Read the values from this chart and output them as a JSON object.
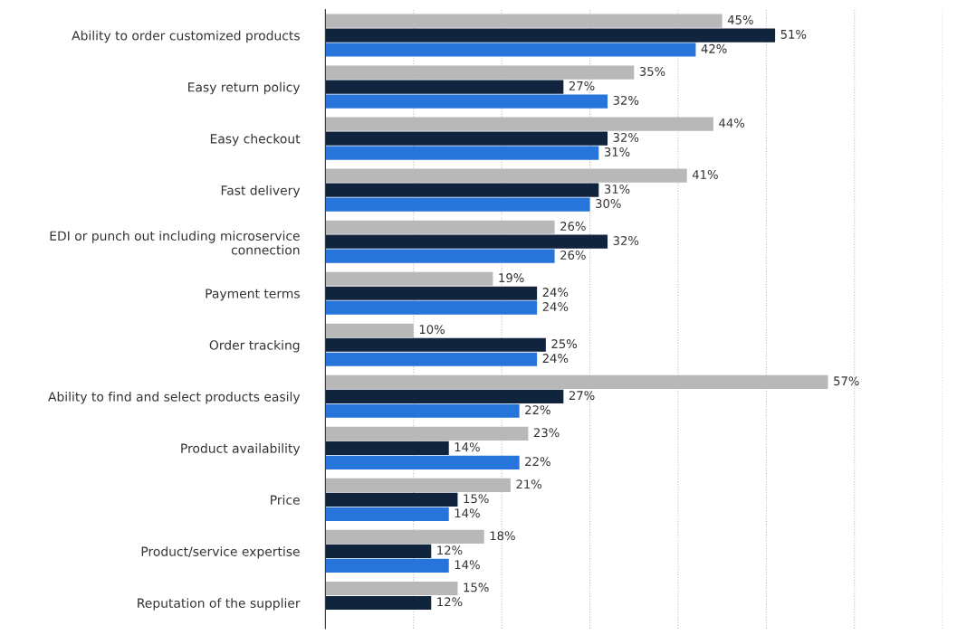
{
  "chart_data": {
    "type": "bar",
    "orientation": "horizontal",
    "categories": [
      "Ability to order customized products",
      "Easy return policy",
      "Easy checkout",
      "Fast delivery",
      "EDI or punch out including microservice\nconnection",
      "Payment terms",
      "Order tracking",
      "Ability to find and select products easily",
      "Product availability",
      "Price",
      "Product/service expertise",
      "Reputation of the supplier"
    ],
    "series": [
      {
        "color": "#b8b8b8",
        "values": [
          45,
          35,
          44,
          41,
          26,
          19,
          10,
          57,
          23,
          21,
          18,
          15
        ],
        "value_labels": [
          "45%",
          "35%",
          "44%",
          "41%",
          "26%",
          "19%",
          "10%",
          "57%",
          "23%",
          "21%",
          "18%",
          "15%"
        ]
      },
      {
        "color": "#10253d",
        "values": [
          51,
          27,
          32,
          31,
          32,
          24,
          25,
          27,
          14,
          15,
          12,
          12
        ],
        "value_labels": [
          "51%",
          "27%",
          "32%",
          "31%",
          "32%",
          "24%",
          "25%",
          "27%",
          "14%",
          "15%",
          "12%",
          "12%"
        ]
      },
      {
        "color": "#2774db",
        "values": [
          42,
          32,
          31,
          30,
          26,
          24,
          24,
          22,
          22,
          14,
          14,
          null
        ],
        "value_labels": [
          "42%",
          "32%",
          "31%",
          "30%",
          "26%",
          "24%",
          "24%",
          "22%",
          "22%",
          "14%",
          "14%",
          null
        ]
      }
    ],
    "xticks": [
      {
        "value": 10,
        "label": null
      },
      {
        "value": 20,
        "label": null
      },
      {
        "value": 30,
        "label": null
      },
      {
        "value": 40,
        "label": null
      },
      {
        "value": 50,
        "label": null
      },
      {
        "value": 60,
        "label": null
      },
      {
        "value": 70,
        "label": null
      }
    ],
    "grid": "x",
    "tick_labels": "y"
  }
}
